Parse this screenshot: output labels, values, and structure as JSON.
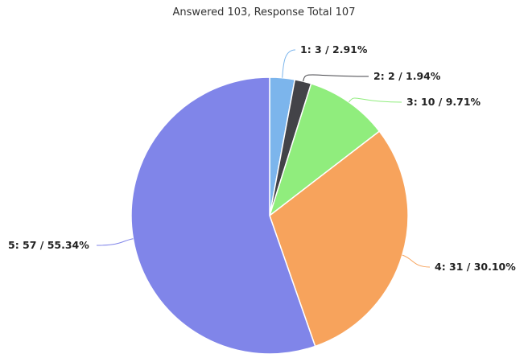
{
  "chart_data": {
    "type": "pie",
    "title": "Answered 103, Response Total 107",
    "slices": [
      {
        "label": "1",
        "value": 3,
        "percent": "2.91%",
        "color": "#7cb5ec"
      },
      {
        "label": "2",
        "value": 2,
        "percent": "1.94%",
        "color": "#434348"
      },
      {
        "label": "3",
        "value": 10,
        "percent": "9.71%",
        "color": "#90ed7d"
      },
      {
        "label": "4",
        "value": 31,
        "percent": "30.10%",
        "color": "#f7a35c"
      },
      {
        "label": "5",
        "value": 57,
        "percent": "55.34%",
        "color": "#8085e9"
      }
    ],
    "start_angle_deg": 0,
    "direction": "clockwise",
    "legend": "none",
    "data_labels": "outside-with-connectors"
  }
}
